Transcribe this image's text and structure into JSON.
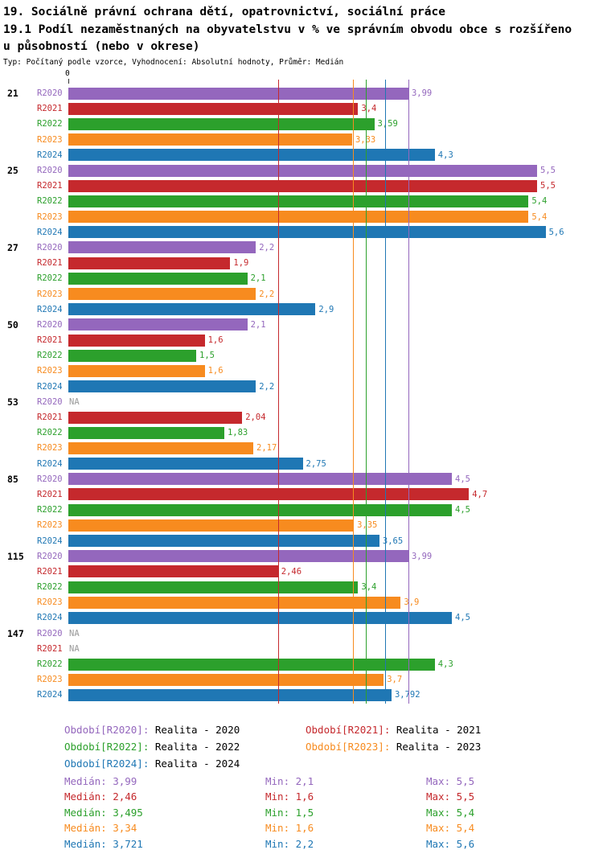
{
  "chart_data": {
    "type": "bar",
    "orientation": "horizontal",
    "title": "19. Sociálně právní ochrana dětí, opatrovnictví, sociální práce",
    "subtitle_line1": "19.1 Podíl nezaměstnaných na obyvatelstvu v % ve správním obvodu obce s rozšířeno",
    "subtitle_line2": "u působností (nebo v okrese)",
    "meta": "Typ: Počítaný podle vzorce, Vyhodnocení: Absolutní hodnoty, Průměr: Medián",
    "zero_label": "0",
    "xlim": [
      0,
      6.3
    ],
    "grid": false,
    "na_label": "NA",
    "categories": [
      "21",
      "25",
      "27",
      "50",
      "53",
      "85",
      "115",
      "147"
    ],
    "series_names": [
      "R2020",
      "R2021",
      "R2022",
      "R2023",
      "R2024"
    ],
    "colors": {
      "R2020": "#9467bd",
      "R2021": "#c5292d",
      "R2022": "#2ca02c",
      "R2023": "#f78b1f",
      "R2024": "#1f77b4",
      "na": "#999999"
    },
    "groups": [
      {
        "category": "21",
        "values": [
          {
            "s": "R2020",
            "v": 3.99,
            "t": "3,99"
          },
          {
            "s": "R2021",
            "v": 3.4,
            "t": "3,4"
          },
          {
            "s": "R2022",
            "v": 3.59,
            "t": "3,59"
          },
          {
            "s": "R2023",
            "v": 3.33,
            "t": "3,33"
          },
          {
            "s": "R2024",
            "v": 4.3,
            "t": "4,3"
          }
        ]
      },
      {
        "category": "25",
        "values": [
          {
            "s": "R2020",
            "v": 5.5,
            "t": "5,5"
          },
          {
            "s": "R2021",
            "v": 5.5,
            "t": "5,5"
          },
          {
            "s": "R2022",
            "v": 5.4,
            "t": "5,4"
          },
          {
            "s": "R2023",
            "v": 5.4,
            "t": "5,4"
          },
          {
            "s": "R2024",
            "v": 5.6,
            "t": "5,6"
          }
        ]
      },
      {
        "category": "27",
        "values": [
          {
            "s": "R2020",
            "v": 2.2,
            "t": "2,2"
          },
          {
            "s": "R2021",
            "v": 1.9,
            "t": "1,9"
          },
          {
            "s": "R2022",
            "v": 2.1,
            "t": "2,1"
          },
          {
            "s": "R2023",
            "v": 2.2,
            "t": "2,2"
          },
          {
            "s": "R2024",
            "v": 2.9,
            "t": "2,9"
          }
        ]
      },
      {
        "category": "50",
        "values": [
          {
            "s": "R2020",
            "v": 2.1,
            "t": "2,1"
          },
          {
            "s": "R2021",
            "v": 1.6,
            "t": "1,6"
          },
          {
            "s": "R2022",
            "v": 1.5,
            "t": "1,5"
          },
          {
            "s": "R2023",
            "v": 1.6,
            "t": "1,6"
          },
          {
            "s": "R2024",
            "v": 2.2,
            "t": "2,2"
          }
        ]
      },
      {
        "category": "53",
        "values": [
          {
            "s": "R2020",
            "v": null,
            "t": "NA"
          },
          {
            "s": "R2021",
            "v": 2.04,
            "t": "2,04"
          },
          {
            "s": "R2022",
            "v": 1.83,
            "t": "1,83"
          },
          {
            "s": "R2023",
            "v": 2.17,
            "t": "2,17"
          },
          {
            "s": "R2024",
            "v": 2.75,
            "t": "2,75"
          }
        ]
      },
      {
        "category": "85",
        "values": [
          {
            "s": "R2020",
            "v": 4.5,
            "t": "4,5"
          },
          {
            "s": "R2021",
            "v": 4.7,
            "t": "4,7"
          },
          {
            "s": "R2022",
            "v": 4.5,
            "t": "4,5"
          },
          {
            "s": "R2023",
            "v": 3.35,
            "t": "3,35"
          },
          {
            "s": "R2024",
            "v": 3.65,
            "t": "3,65"
          }
        ]
      },
      {
        "category": "115",
        "values": [
          {
            "s": "R2020",
            "v": 3.99,
            "t": "3,99"
          },
          {
            "s": "R2021",
            "v": 2.46,
            "t": "2,46"
          },
          {
            "s": "R2022",
            "v": 3.4,
            "t": "3,4"
          },
          {
            "s": "R2023",
            "v": 3.9,
            "t": "3,9"
          },
          {
            "s": "R2024",
            "v": 4.5,
            "t": "4,5"
          }
        ]
      },
      {
        "category": "147",
        "values": [
          {
            "s": "R2020",
            "v": null,
            "t": "NA"
          },
          {
            "s": "R2021",
            "v": null,
            "t": "NA"
          },
          {
            "s": "R2022",
            "v": 4.3,
            "t": "4,3"
          },
          {
            "s": "R2023",
            "v": 3.7,
            "t": "3,7"
          },
          {
            "s": "R2024",
            "v": 3.792,
            "t": "3,792"
          }
        ]
      }
    ],
    "medians": [
      {
        "series": "R2020",
        "value": 3.99
      },
      {
        "series": "R2021",
        "value": 2.46
      },
      {
        "series": "R2022",
        "value": 3.495
      },
      {
        "series": "R2023",
        "value": 3.34
      },
      {
        "series": "R2024",
        "value": 3.721
      }
    ],
    "legend_rows": [
      [
        {
          "series": "R2020",
          "key": "Období[R2020]:",
          "value": "Realita - 2020"
        },
        {
          "series": "R2021",
          "key": "Období[R2021]:",
          "value": "Realita - 2021"
        }
      ],
      [
        {
          "series": "R2022",
          "key": "Období[R2022]:",
          "value": "Realita - 2022"
        },
        {
          "series": "R2023",
          "key": "Období[R2023]:",
          "value": "Realita - 2023"
        }
      ],
      [
        {
          "series": "R2024",
          "key": "Období[R2024]:",
          "value": "Realita - 2024"
        }
      ]
    ],
    "stat_rows": [
      {
        "series": "R2020",
        "median": "Medián: 3,99",
        "min": "Min: 2,1",
        "max": "Max: 5,5"
      },
      {
        "series": "R2021",
        "median": "Medián: 2,46",
        "min": "Min: 1,6",
        "max": "Max: 5,5"
      },
      {
        "series": "R2022",
        "median": "Medián: 3,495",
        "min": "Min: 1,5",
        "max": "Max: 5,4"
      },
      {
        "series": "R2023",
        "median": "Medián: 3,34",
        "min": "Min: 1,6",
        "max": "Max: 5,4"
      },
      {
        "series": "R2024",
        "median": "Medián: 3,721",
        "min": "Min: 2,2",
        "max": "Max: 5,6"
      }
    ]
  }
}
